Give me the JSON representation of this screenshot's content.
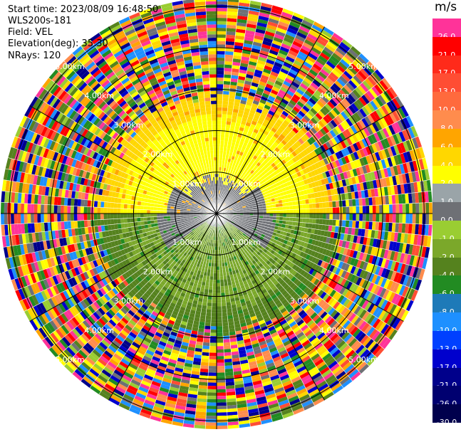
{
  "header": {
    "start_time": "Start time: 2023/08/09 16:48:50",
    "instrument": "WLS200s-181",
    "field": "Field: VEL",
    "elevation": "Elevation(deg): 35.30",
    "nrays": "NRays: 120"
  },
  "colorbar": {
    "unit": "m/s",
    "levels": [
      {
        "label": "26.0",
        "color": "#ff3399"
      },
      {
        "label": "21.0",
        "color": "#ff0000"
      },
      {
        "label": "17.0",
        "color": "#ff2a1a"
      },
      {
        "label": "13.0",
        "color": "#ff4d33"
      },
      {
        "label": "10.0",
        "color": "#ff6a3d"
      },
      {
        "label": "8.0",
        "color": "#ff8c4d"
      },
      {
        "label": "6.0",
        "color": "#ffa500"
      },
      {
        "label": "4.0",
        "color": "#ffd700"
      },
      {
        "label": "2.0",
        "color": "#ffff00"
      },
      {
        "label": "1.0",
        "color": "#9aa4a8"
      },
      {
        "label": "0.0",
        "color": "#6e7075"
      },
      {
        "label": "-1.0",
        "color": "#9acd32"
      },
      {
        "label": "-2.0",
        "color": "#7ba82a"
      },
      {
        "label": "-4.0",
        "color": "#55821e"
      },
      {
        "label": "-6.0",
        "color": "#228b22"
      },
      {
        "label": "-8.0",
        "color": "#1e7ab8"
      },
      {
        "label": "-10.0",
        "color": "#1e90ff"
      },
      {
        "label": "-13.0",
        "color": "#0040ff"
      },
      {
        "label": "-17.0",
        "color": "#0000cd"
      },
      {
        "label": "-21.0",
        "color": "#00008b"
      },
      {
        "label": "-26.0",
        "color": "#000070"
      },
      {
        "label": "-30.0",
        "color": "#00004d"
      }
    ]
  },
  "chart_data": {
    "type": "heatmap",
    "title": "",
    "field": "VEL",
    "unit": "m/s",
    "projection": "polar PPI",
    "rays": 120,
    "elevation_deg": 35.3,
    "range_rings_km": [
      1.0,
      2.0,
      3.0,
      4.0,
      5.0
    ],
    "range_labels": [
      "1.00km",
      "2.00km",
      "3.00km",
      "4.00km",
      "5.00km"
    ],
    "spoke_azimuths_deg": [
      0,
      30,
      60,
      90,
      120,
      150,
      180,
      210,
      240,
      270,
      300,
      330
    ],
    "regions": [
      {
        "range_km": [
          0,
          1.2
        ],
        "sector": "north",
        "value_ms": 0.0
      },
      {
        "range_km": [
          0.6,
          2.2
        ],
        "sector": "north",
        "value_ms": 2.0
      },
      {
        "range_km": [
          2.2,
          2.6
        ],
        "sector": "north",
        "value_ms": 4.0
      },
      {
        "range_km": [
          0,
          2.2
        ],
        "sector": "south",
        "value_ms": -2.0
      },
      {
        "range_km": [
          2.2,
          2.8
        ],
        "sector": "south",
        "value_ms": -4.0
      },
      {
        "range_km": [
          2.8,
          5.2
        ],
        "sector": "all",
        "value_ms": "noise"
      }
    ]
  }
}
